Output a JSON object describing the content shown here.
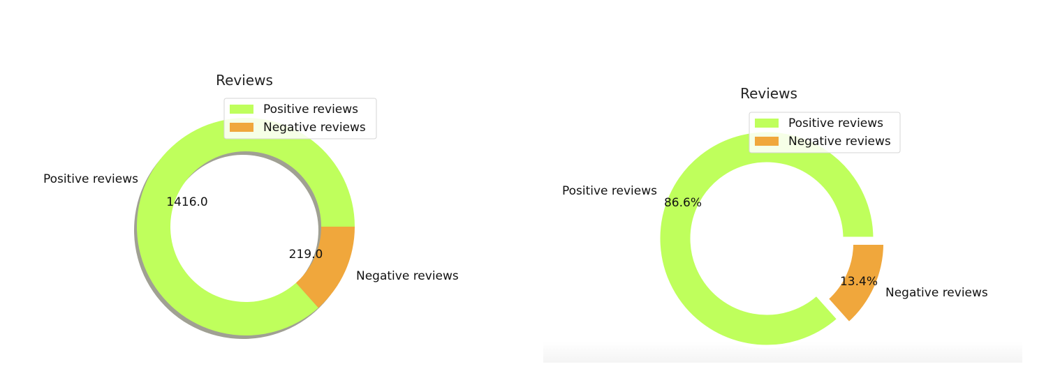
{
  "colors": {
    "positive": "#bfff5c",
    "negative": "#f0a73c",
    "shadow": "#8f8f80"
  },
  "chart_data": [
    {
      "type": "pie",
      "variant": "donut",
      "title": "Reviews",
      "categories": [
        "Positive reviews",
        "Negative reviews"
      ],
      "values": [
        1416.0,
        219.0
      ],
      "autopct_labels": [
        "1416.0",
        "219.0"
      ],
      "legend": {
        "placement": "top-right",
        "entries": [
          "Positive reviews",
          "Negative reviews"
        ]
      },
      "shadow": true,
      "explode": [
        0,
        0
      ]
    },
    {
      "type": "pie",
      "variant": "donut",
      "title": "Reviews",
      "categories": [
        "Positive reviews",
        "Negative reviews"
      ],
      "values": [
        86.6,
        13.4
      ],
      "autopct_labels": [
        "86.6%",
        "13.4%"
      ],
      "legend": {
        "placement": "top-right",
        "entries": [
          "Positive reviews",
          "Negative reviews"
        ]
      },
      "shadow": false,
      "explode": [
        0,
        0.1
      ]
    }
  ]
}
